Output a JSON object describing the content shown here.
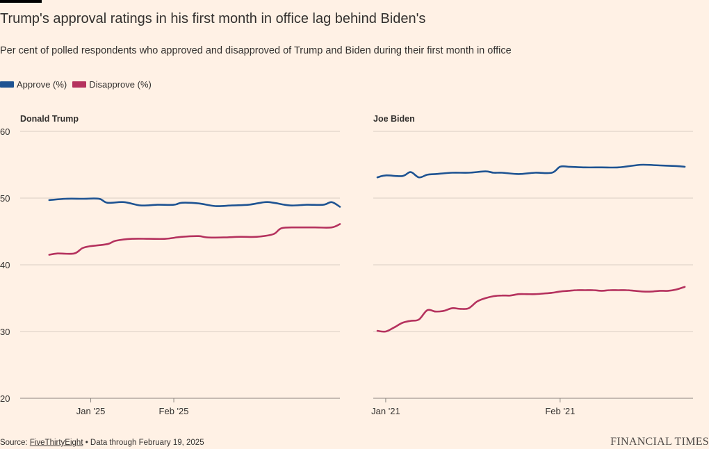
{
  "header": {
    "title": "Trump's approval ratings in his first month in office lag behind Biden's",
    "subtitle": "Per cent of polled respondents who approved and disapproved of Trump and Biden during their first month in office"
  },
  "legend": {
    "approve_label": "Approve (%)",
    "disapprove_label": "Disapprove (%)"
  },
  "colors": {
    "approve": "#1e5392",
    "disapprove": "#b5325e",
    "grid": "#d9cdc3",
    "axis": "#8c8580",
    "text": "#33302e"
  },
  "footer": {
    "source_prefix": "Source: ",
    "source_name": "FiveThirtyEight",
    "source_suffix": " • Data through February 19, 2025",
    "brand": "FINANCIAL TIMES"
  },
  "chart_data": [
    {
      "type": "line",
      "title": "Donald Trump",
      "ylim": [
        20,
        60
      ],
      "yticks": [
        20,
        30,
        40,
        50,
        60
      ],
      "xlim": [
        -8.5,
        30
      ],
      "xticks": [
        {
          "value": 0,
          "label": "Jan '25"
        },
        {
          "value": 10,
          "label": "Feb '25"
        }
      ],
      "series": [
        {
          "name": "Approve (%)",
          "x": [
            -5,
            -3,
            -1,
            1,
            2,
            4,
            6,
            8,
            10,
            11,
            13,
            15,
            17,
            19,
            21,
            22,
            24,
            26,
            28,
            29,
            30
          ],
          "y": [
            49.7,
            49.9,
            49.9,
            49.9,
            49.3,
            49.4,
            48.9,
            49.0,
            49.0,
            49.3,
            49.2,
            48.8,
            48.9,
            49.0,
            49.4,
            49.3,
            48.9,
            49.0,
            49.0,
            49.4,
            48.7
          ]
        },
        {
          "name": "Disapprove (%)",
          "x": [
            -5,
            -4,
            -2,
            -1,
            0,
            2,
            3,
            5,
            7,
            9,
            11,
            13,
            14,
            16,
            18,
            20,
            22,
            23,
            25,
            27,
            29,
            30
          ],
          "y": [
            41.5,
            41.7,
            41.7,
            42.5,
            42.8,
            43.1,
            43.6,
            43.9,
            43.9,
            43.9,
            44.2,
            44.3,
            44.1,
            44.1,
            44.2,
            44.2,
            44.6,
            45.5,
            45.6,
            45.6,
            45.6,
            46.1
          ]
        }
      ]
    },
    {
      "type": "line",
      "title": "Joe Biden",
      "ylim": [
        20,
        60
      ],
      "yticks": [
        20,
        30,
        40,
        50,
        60
      ],
      "xlim": [
        -0.5,
        38
      ],
      "xticks": [
        {
          "value": 1,
          "label": "Jan '21"
        },
        {
          "value": 22,
          "label": "Feb '21"
        }
      ],
      "series": [
        {
          "name": "Approve (%)",
          "x": [
            0,
            1,
            3,
            4,
            5,
            6,
            7,
            9,
            11,
            13,
            14,
            15,
            17,
            19,
            21,
            22,
            23,
            25,
            27,
            29,
            31,
            32,
            34,
            36,
            37
          ],
          "y": [
            53.1,
            53.4,
            53.3,
            53.9,
            53.1,
            53.5,
            53.6,
            53.8,
            53.8,
            54.0,
            53.8,
            53.8,
            53.6,
            53.8,
            53.8,
            54.7,
            54.7,
            54.6,
            54.6,
            54.6,
            54.9,
            55.0,
            54.9,
            54.8,
            54.7
          ]
        },
        {
          "name": "Disapprove (%)",
          "x": [
            0,
            1,
            2,
            3,
            4,
            5,
            6,
            7,
            8,
            9,
            10,
            11,
            12,
            13,
            14,
            15,
            16,
            17,
            18,
            19,
            20,
            21,
            22,
            23,
            24,
            25,
            26,
            27,
            28,
            29,
            30,
            31,
            32,
            33,
            34,
            35,
            36,
            37
          ],
          "y": [
            30.1,
            30.0,
            30.6,
            31.3,
            31.6,
            31.8,
            33.2,
            33.0,
            33.1,
            33.5,
            33.4,
            33.5,
            34.5,
            35.0,
            35.3,
            35.4,
            35.4,
            35.6,
            35.6,
            35.6,
            35.7,
            35.8,
            36.0,
            36.1,
            36.2,
            36.2,
            36.2,
            36.1,
            36.2,
            36.2,
            36.2,
            36.1,
            36.0,
            36.0,
            36.1,
            36.1,
            36.3,
            36.7
          ]
        }
      ]
    }
  ]
}
